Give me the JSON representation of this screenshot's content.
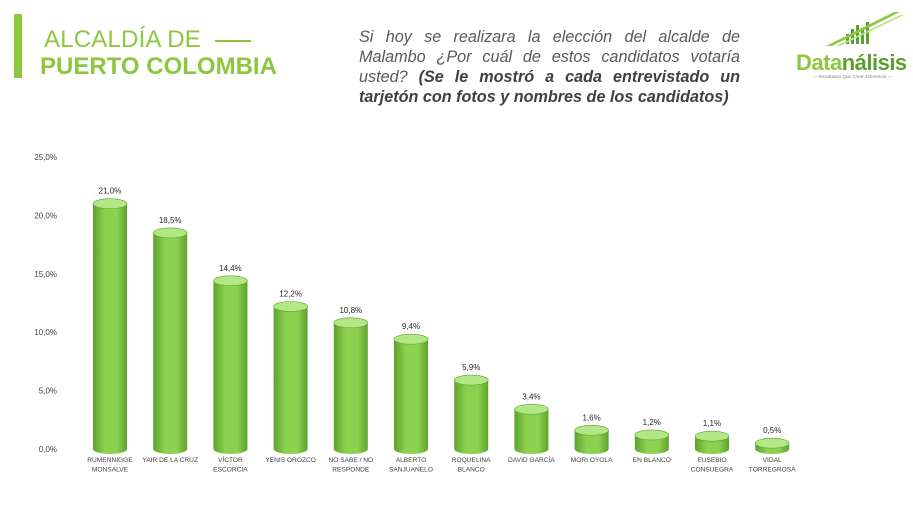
{
  "header": {
    "title_line1": "ALCALDÍA DE",
    "title_line2": "PUERTO COLOMBIA",
    "question_regular": "Si hoy se realizara la elección del alcalde de Malambo ¿Por cuál de estos candidatos votaría usted?",
    "question_bold": "(Se le mostró a cada entrevistado un tarjetón con fotos y nombres de los candidatos)"
  },
  "logo": {
    "name_part1": "Data",
    "name_part2": "nálisis",
    "tagline": "— Resultados Que Crean Diferencia —"
  },
  "colors": {
    "accent": "#8dc63f",
    "bar_face": "#8cd14f",
    "bar_top": "#b3e685",
    "bar_edge": "#5ea22e"
  },
  "chart_data": {
    "type": "bar",
    "title": "",
    "xlabel": "",
    "ylabel": "",
    "ylim": [
      0,
      25
    ],
    "yticks": [
      "0,0%",
      "5,0%",
      "10,0%",
      "15,0%",
      "20,0%",
      "25,0%"
    ],
    "grid": false,
    "categories": [
      [
        "RUMENNIGGE",
        "MONSALVE"
      ],
      [
        "YAIR DE LA CRUZ"
      ],
      [
        "VÍCTOR",
        "ESCORCIA"
      ],
      [
        "YENIS OROZCO"
      ],
      [
        "NO SABE / NO",
        "RESPONDE"
      ],
      [
        "ALBERTO",
        "SANJUANELO"
      ],
      [
        "ROQUELINA",
        "BLANCO"
      ],
      [
        "DAVID GARCÍA"
      ],
      [
        "MORI OYOLA"
      ],
      [
        "EN BLANCO"
      ],
      [
        "EUSEBIO",
        "CONSUEGRA"
      ],
      [
        "VIDAL",
        "TORREGROSA"
      ]
    ],
    "values": [
      21.0,
      18.5,
      14.4,
      12.2,
      10.8,
      9.4,
      5.9,
      3.4,
      1.6,
      1.2,
      1.1,
      0.5
    ],
    "labels": [
      "21,0%",
      "18,5%",
      "14,4%",
      "12,2%",
      "10,8%",
      "9,4%",
      "5,9%",
      "3,4%",
      "1,6%",
      "1,2%",
      "1,1%",
      "0,5%"
    ]
  }
}
